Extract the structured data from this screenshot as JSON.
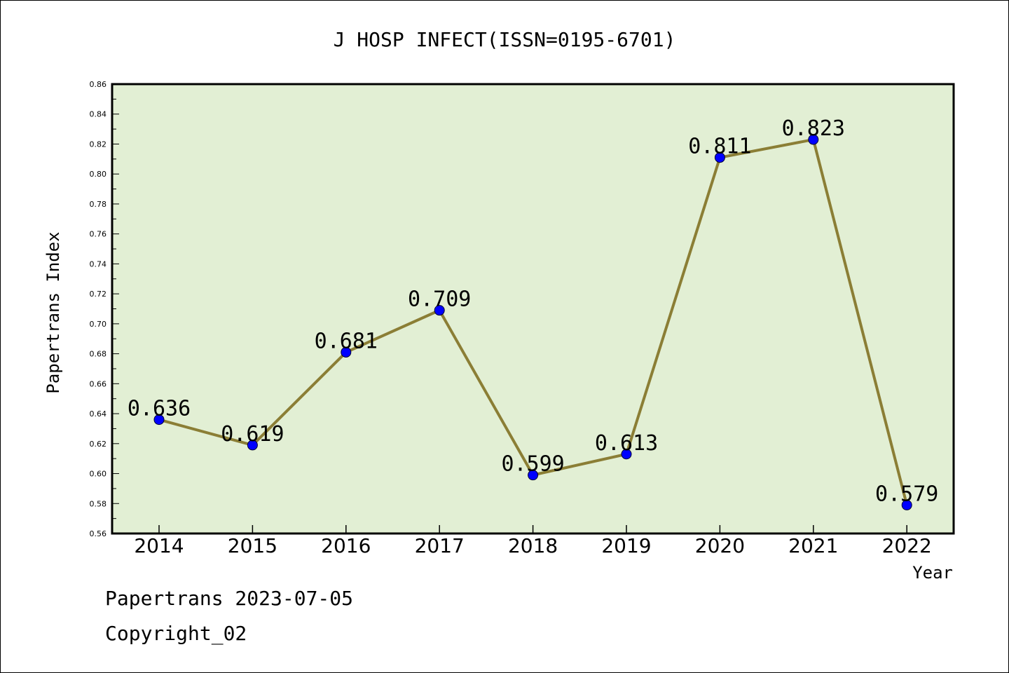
{
  "chart_data": {
    "type": "line",
    "title": "J HOSP INFECT(ISSN=0195-6701)",
    "xlabel": "Year",
    "ylabel": "Papertrans Index",
    "categories": [
      "2014",
      "2015",
      "2016",
      "2017",
      "2018",
      "2019",
      "2020",
      "2021",
      "2022"
    ],
    "values": [
      0.636,
      0.619,
      0.681,
      0.709,
      0.599,
      0.613,
      0.811,
      0.823,
      0.579
    ],
    "value_labels": [
      "0.636",
      "0.619",
      "0.681",
      "0.709",
      "0.599",
      "0.613",
      "0.811",
      "0.823",
      "0.579"
    ],
    "ylim": [
      0.56,
      0.86
    ],
    "yticks": [
      "0.56",
      "0.58",
      "0.60",
      "0.62",
      "0.64",
      "0.66",
      "0.68",
      "0.70",
      "0.72",
      "0.74",
      "0.76",
      "0.78",
      "0.80",
      "0.82",
      "0.84",
      "0.86"
    ],
    "grid": false,
    "colors": {
      "plot_background": "#e2efd4",
      "line": "#8b7e35",
      "marker": "#0000ff"
    }
  },
  "footer": {
    "line1": "Papertrans 2023-07-05",
    "line2": "Copyright_02"
  }
}
